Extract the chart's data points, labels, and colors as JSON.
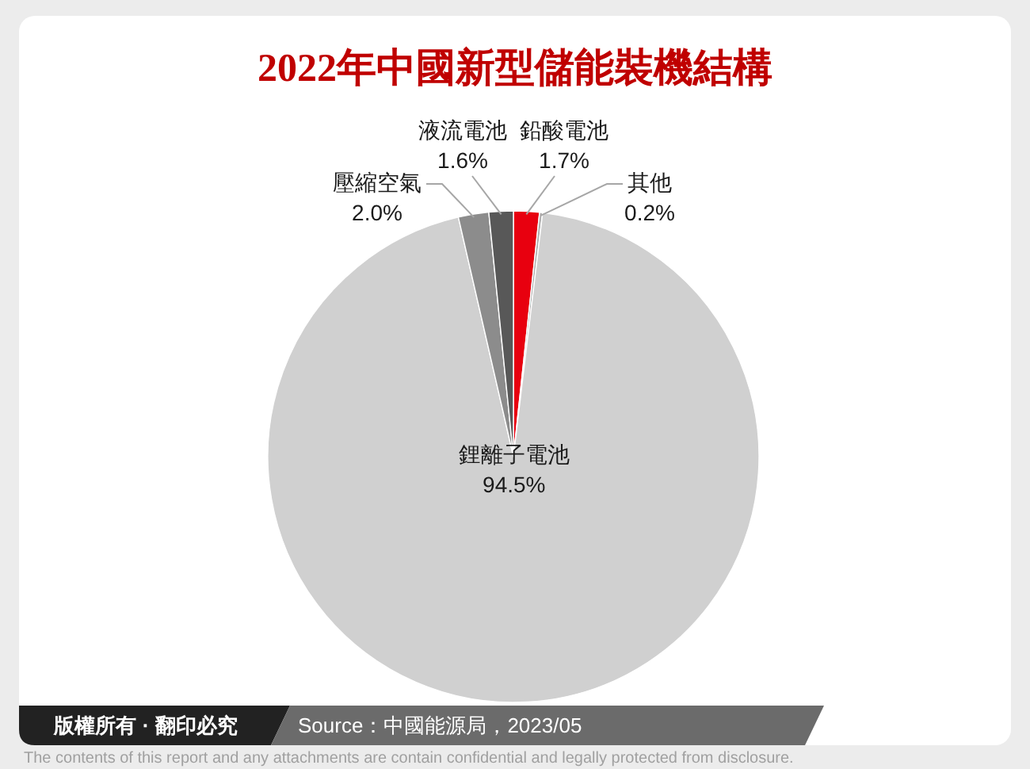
{
  "chart_data": {
    "type": "pie",
    "title": "2022年中國新型儲能裝機結構",
    "categories": [
      "鉛酸電池",
      "其他",
      "鋰離子電池",
      "壓縮空氣",
      "液流電池"
    ],
    "values": [
      1.7,
      0.2,
      94.5,
      2.0,
      1.6
    ],
    "value_labels": [
      "1.7%",
      "0.2%",
      "94.5%",
      "2.0%",
      "1.6%"
    ],
    "colors": [
      "#e8000f",
      "#b0b0b0",
      "#d0d0d0",
      "#8c8c8c",
      "#585858"
    ],
    "annotations": [
      "版權所有 · 翻印必究",
      "Source：中國能源局，2023/05",
      "The contents of this report and any attachments are contain confidential and legally protected from disclosure."
    ]
  }
}
